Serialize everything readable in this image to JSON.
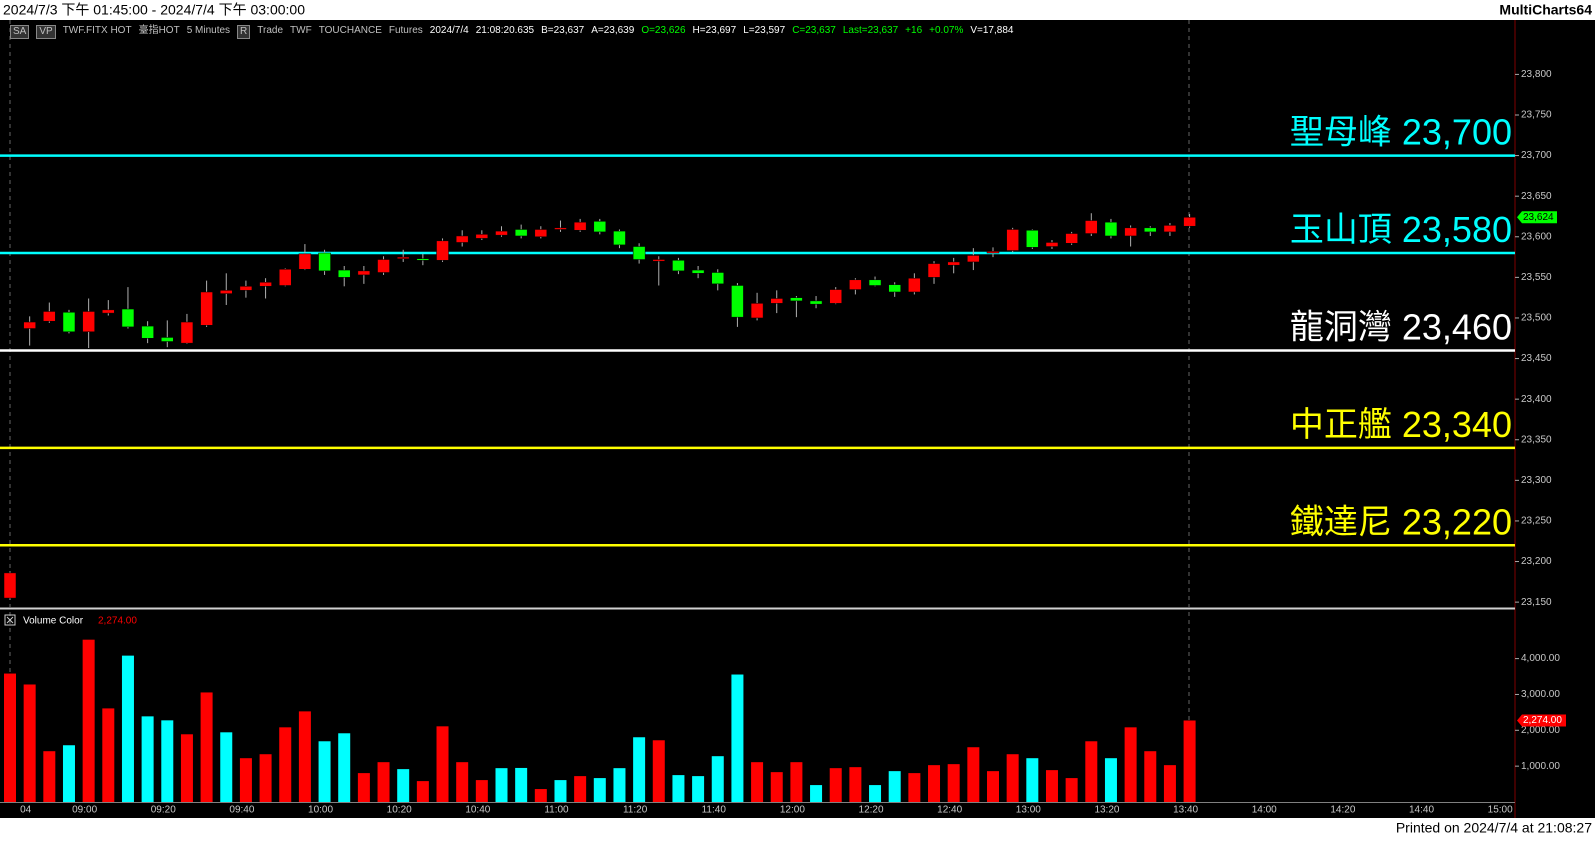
{
  "window": {
    "title": "2024/7/3 下午 01:45:00 - 2024/7/4 下午 03:00:00",
    "app": "MultiCharts64"
  },
  "toolbar": [
    {
      "text": "SA",
      "color": "#c0c0c0"
    },
    {
      "text": "VP",
      "color": "#c0c0c0"
    },
    {
      "text": "TWF.FITX HOT",
      "color": "#c0c0c0"
    },
    {
      "text": "臺指HOT",
      "color": "#c0c0c0"
    },
    {
      "text": "5 Minutes",
      "color": "#c0c0c0"
    },
    {
      "text": "R",
      "color": "#c0c0c0"
    },
    {
      "text": "Trade",
      "color": "#c0c0c0"
    },
    {
      "text": "TWF",
      "color": "#c0c0c0"
    },
    {
      "text": "TOUCHANCE",
      "color": "#c0c0c0"
    },
    {
      "text": "Futures",
      "color": "#c0c0c0"
    },
    {
      "text": "2024/7/4",
      "color": "#ffffff"
    },
    {
      "text": "21:08:20.635",
      "color": "#ffffff"
    },
    {
      "text": "B=23,637",
      "color": "#ffffff"
    },
    {
      "text": "A=23,639",
      "color": "#ffffff"
    },
    {
      "text": "O=23,626",
      "color": "#00ff00"
    },
    {
      "text": "H=23,697",
      "color": "#ffffff"
    },
    {
      "text": "L=23,597",
      "color": "#ffffff"
    },
    {
      "text": "C=23,637",
      "color": "#00ff00"
    },
    {
      "text": "Last=23,637",
      "color": "#00ff00"
    },
    {
      "text": "+16",
      "color": "#00ff00"
    },
    {
      "text": "+0.07%",
      "color": "#00ff00"
    },
    {
      "text": "V=17,884",
      "color": "#ffffff"
    }
  ],
  "footer": "Printed on 2024/7/4 at 21:08:27",
  "chart_data": {
    "type": "candlestick",
    "categories": [
      null,
      "04",
      null,
      null,
      "09:00",
      null,
      null,
      null,
      "09:20",
      null,
      null,
      null,
      "09:40",
      null,
      null,
      null,
      "10:00",
      null,
      null,
      null,
      "10:20",
      null,
      null,
      null,
      "10:40",
      null,
      null,
      null,
      "11:00",
      null,
      null,
      null,
      "11:20",
      null,
      null,
      null,
      "11:40",
      null,
      null,
      null,
      "12:00",
      null,
      null,
      null,
      "12:20",
      null,
      null,
      null,
      "12:40",
      null,
      null,
      null,
      "13:00",
      null,
      null,
      null,
      "13:20",
      null,
      null,
      null,
      "13:40",
      null,
      null,
      null,
      "14:00",
      null,
      null,
      null,
      "14:20",
      null,
      null,
      null,
      "14:40",
      null,
      null,
      null,
      "15:00"
    ],
    "open": [
      23155,
      23487,
      23496,
      23507,
      23483,
      23506,
      23511,
      23490,
      23476,
      23469,
      23491,
      23530,
      23534,
      23539,
      23540,
      23560,
      23580,
      23559,
      23553,
      23556,
      23573,
      23573,
      23571,
      23593,
      23598,
      23602,
      23609,
      23600,
      23609,
      23608,
      23619,
      23607,
      23588,
      23570,
      23571,
      23559,
      23556,
      23540,
      23500,
      23518,
      23525,
      23521,
      23518,
      23535,
      23547,
      23541,
      23532,
      23550,
      23565,
      23569,
      23580,
      23583,
      23608,
      23588,
      23592,
      23604,
      23618,
      23601,
      23611,
      23606,
      23613,
      null,
      null,
      null,
      null,
      null,
      null,
      null,
      null,
      null,
      null,
      null,
      null,
      null,
      null,
      null,
      null
    ],
    "high": [
      23188,
      23502,
      23519,
      23510,
      23524,
      23522,
      23538,
      23496,
      23497,
      23505,
      23546,
      23555,
      23546,
      23549,
      23561,
      23591,
      23584,
      23564,
      23564,
      23576,
      23584,
      23579,
      23598,
      23608,
      23608,
      23613,
      23615,
      23613,
      23620,
      23622,
      23622,
      23609,
      23592,
      23576,
      23574,
      23564,
      23560,
      23543,
      23531,
      23534,
      23527,
      23527,
      23538,
      23549,
      23551,
      23544,
      23555,
      23570,
      23574,
      23586,
      23587,
      23611,
      23609,
      23596,
      23606,
      23629,
      23622,
      23614,
      23613,
      23617,
      23628,
      null,
      null,
      null,
      null,
      null,
      null,
      null,
      null,
      null,
      null,
      null,
      null,
      null,
      null,
      null,
      null
    ],
    "low": [
      23153,
      23466,
      23494,
      23481,
      23463,
      23503,
      23487,
      23469,
      23464,
      23468,
      23489,
      23516,
      23525,
      23524,
      23539,
      23559,
      23553,
      23539,
      23542,
      23553,
      23569,
      23565,
      23569,
      23588,
      23596,
      23600,
      23598,
      23598,
      23606,
      23606,
      23603,
      23586,
      23567,
      23540,
      23554,
      23549,
      23534,
      23489,
      23497,
      23506,
      23501,
      23512,
      23517,
      23529,
      23539,
      23526,
      23529,
      23542,
      23555,
      23559,
      23575,
      23581,
      23585,
      23585,
      23590,
      23601,
      23598,
      23588,
      23601,
      23601,
      23611,
      null,
      null,
      null,
      null,
      null,
      null,
      null,
      null,
      null,
      null,
      null,
      null,
      null,
      null,
      null,
      null
    ],
    "close": [
      23186,
      23495,
      23508,
      23483,
      23508,
      23510,
      23489,
      23475,
      23471,
      23495,
      23532,
      23534,
      23539,
      23544,
      23560,
      23579,
      23558,
      23550,
      23558,
      23572,
      23575,
      23571,
      23595,
      23601,
      23603,
      23607,
      23601,
      23609,
      23611,
      23618,
      23606,
      23590,
      23572,
      23572,
      23558,
      23555,
      23542,
      23501,
      23518,
      23524,
      23521,
      23517,
      23535,
      23547,
      23540,
      23532,
      23549,
      23567,
      23569,
      23577,
      23582,
      23609,
      23587,
      23593,
      23604,
      23620,
      23601,
      23611,
      23606,
      23614,
      23624,
      null,
      null,
      null,
      null,
      null,
      null,
      null,
      null,
      null,
      null,
      null,
      null,
      null,
      null,
      null,
      null
    ],
    "color_up": "#ff0000",
    "color_down": "#00ff00",
    "last_close_label": "23,624",
    "last_close_color": "#00ff00",
    "ylim": [
      23144,
      23867
    ],
    "yticks": [
      {
        "value": 23150,
        "label": "23,150"
      },
      {
        "value": 23200,
        "label": "23,200"
      },
      {
        "value": 23250,
        "label": "23,250"
      },
      {
        "value": 23300,
        "label": "23,300"
      },
      {
        "value": 23350,
        "label": "23,350"
      },
      {
        "value": 23400,
        "label": "23,400"
      },
      {
        "value": 23450,
        "label": "23,450"
      },
      {
        "value": 23500,
        "label": "23,500"
      },
      {
        "value": 23550,
        "label": "23,550"
      },
      {
        "value": 23600,
        "label": "23,600"
      },
      {
        "value": 23650,
        "label": "23,650"
      },
      {
        "value": 23700,
        "label": "23,700"
      },
      {
        "value": 23750,
        "label": "23,750"
      },
      {
        "value": 23800,
        "label": "23,800"
      }
    ],
    "levels": [
      {
        "name": "聖母峰",
        "value": 23700,
        "label": "23,700",
        "color": "#00ffff"
      },
      {
        "name": "玉山頂",
        "value": 23580,
        "label": "23,580",
        "color": "#00ffff"
      },
      {
        "name": "龍洞灣",
        "value": 23460,
        "label": "23,460",
        "color": "#ffffff"
      },
      {
        "name": "中正艦",
        "value": 23340,
        "label": "23,340",
        "color": "#ffff00"
      },
      {
        "name": "鐵達尼",
        "value": 23220,
        "label": "23,220",
        "color": "#ffff00"
      }
    ],
    "volume": {
      "name": "Volume Color",
      "values": [
        3583,
        3278,
        1417,
        1583,
        4528,
        2611,
        4083,
        2389,
        2278,
        1889,
        3056,
        1944,
        1222,
        1333,
        2083,
        2528,
        1694,
        1917,
        806,
        1111,
        917,
        583,
        2111,
        1111,
        611,
        944,
        950,
        361,
        611,
        722,
        667,
        944,
        1806,
        1722,
        750,
        722,
        1278,
        3556,
        1111,
        833,
        1111,
        472,
        944,
        972,
        472,
        861,
        806,
        1028,
        1056,
        1528,
        861,
        1333,
        1222,
        889,
        667,
        1694,
        1222,
        2083,
        1417,
        1028,
        2274,
        null,
        null,
        null,
        null,
        null,
        null,
        null,
        null,
        null,
        null,
        null,
        null,
        null,
        null,
        null,
        null
      ],
      "colors": [
        "#ff0000",
        "#ff0000",
        "#ff0000",
        "#00ffff",
        "#ff0000",
        "#ff0000",
        "#00ffff",
        "#00ffff",
        "#00ffff",
        "#ff0000",
        "#ff0000",
        "#00ffff",
        "#ff0000",
        "#ff0000",
        "#ff0000",
        "#ff0000",
        "#00ffff",
        "#00ffff",
        "#ff0000",
        "#ff0000",
        "#00ffff",
        "#ff0000",
        "#ff0000",
        "#ff0000",
        "#ff0000",
        "#00ffff",
        "#00ffff",
        "#ff0000",
        "#00ffff",
        "#ff0000",
        "#00ffff",
        "#00ffff",
        "#00ffff",
        "#ff0000",
        "#00ffff",
        "#00ffff",
        "#00ffff",
        "#00ffff",
        "#ff0000",
        "#ff0000",
        "#ff0000",
        "#00ffff",
        "#ff0000",
        "#ff0000",
        "#00ffff",
        "#00ffff",
        "#ff0000",
        "#ff0000",
        "#ff0000",
        "#ff0000",
        "#ff0000",
        "#ff0000",
        "#00ffff",
        "#ff0000",
        "#ff0000",
        "#ff0000",
        "#00ffff",
        "#ff0000",
        "#ff0000",
        "#ff0000",
        "#ff0000",
        null,
        null,
        null,
        null,
        null,
        null,
        null,
        null,
        null,
        null,
        null,
        null,
        null,
        null,
        null,
        null
      ],
      "last_label": "2,274.00",
      "last_color": "#ff0000",
      "ylim": [
        0,
        5300
      ],
      "yticks": [
        {
          "value": 1000,
          "label": "1,000.00"
        },
        {
          "value": 2000,
          "label": "2,000.00"
        },
        {
          "value": 3000,
          "label": "3,000.00"
        },
        {
          "value": 4000,
          "label": "4,000.00"
        }
      ]
    }
  }
}
